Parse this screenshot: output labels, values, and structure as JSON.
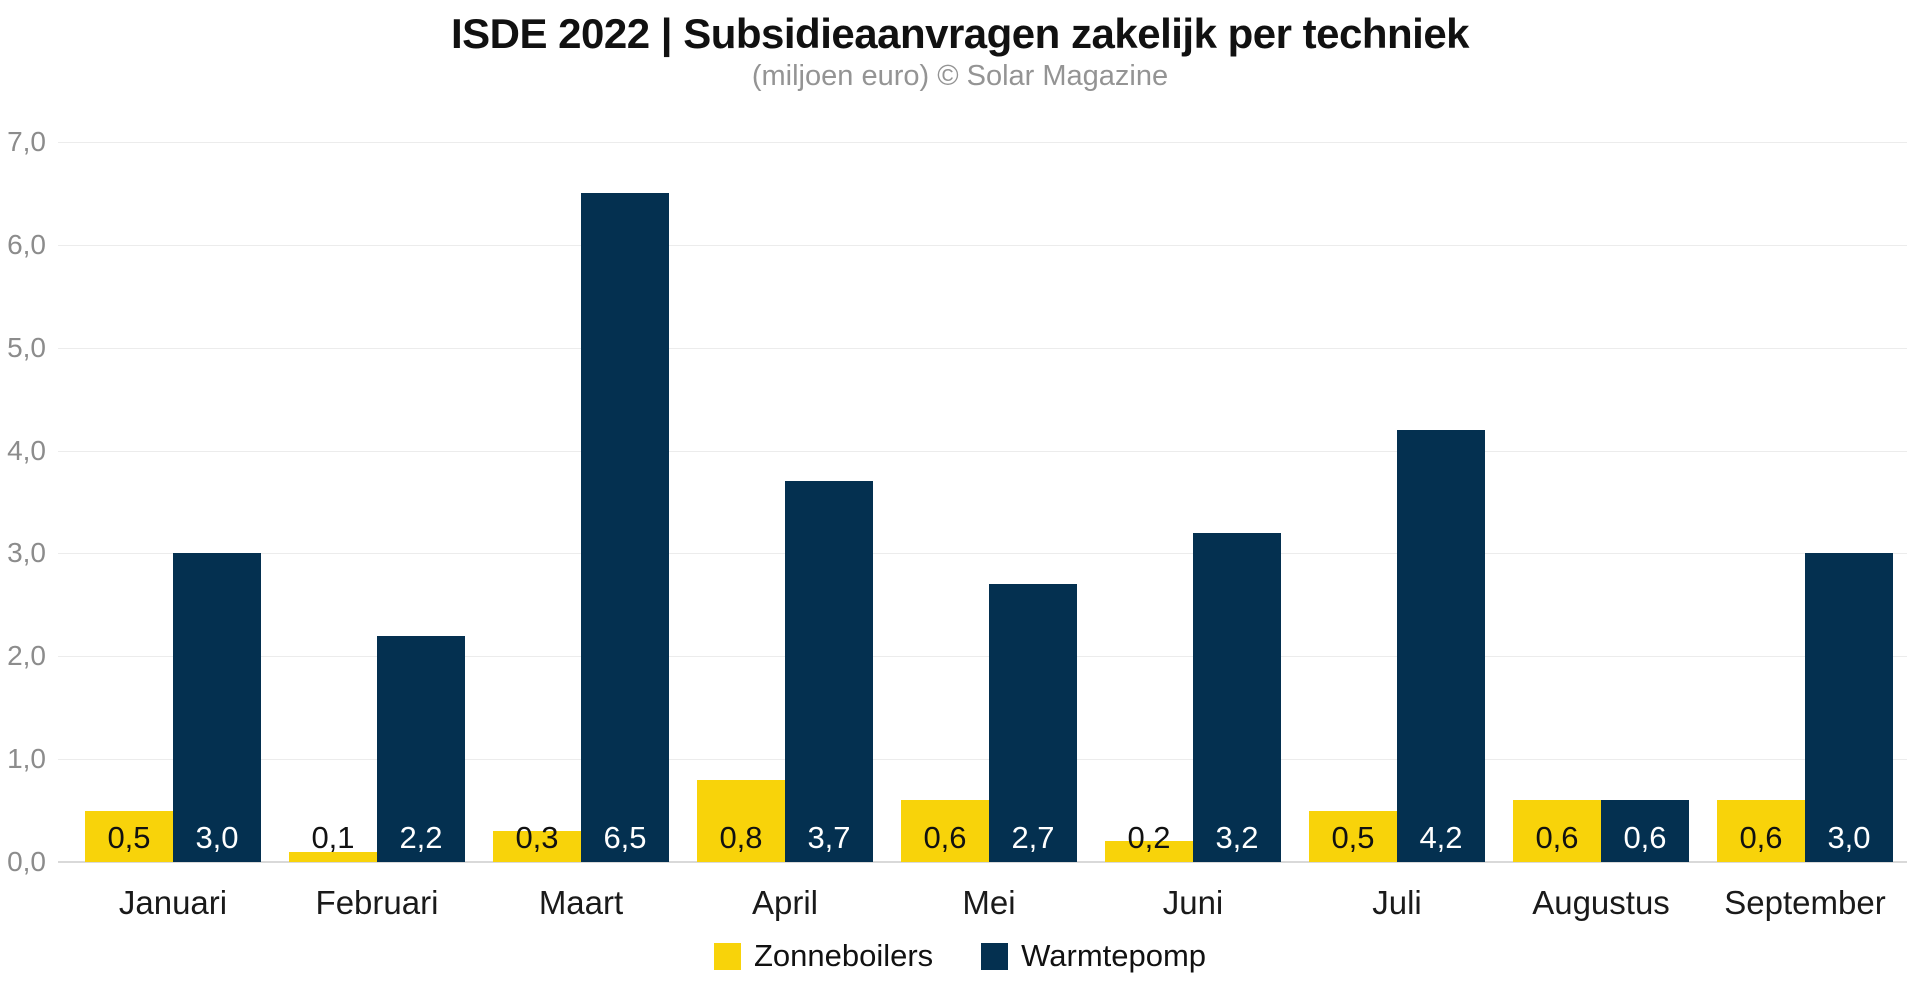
{
  "chart_data": {
    "type": "bar",
    "title": "ISDE 2022 | Subsidieaanvragen zakelijk per techniek",
    "subtitle": "(miljoen euro) © Solar Magazine",
    "categories": [
      "Januari",
      "Februari",
      "Maart",
      "April",
      "Mei",
      "Juni",
      "Juli",
      "Augustus",
      "September"
    ],
    "series": [
      {
        "name": "Zonneboilers",
        "color": "#f8d30a",
        "label_color": "#111111",
        "values": [
          0.5,
          0.1,
          0.3,
          0.8,
          0.6,
          0.2,
          0.5,
          0.6,
          0.6
        ],
        "labels": [
          "0,5",
          "0,1",
          "0,3",
          "0,8",
          "0,6",
          "0,2",
          "0,5",
          "0,6",
          "0,6"
        ]
      },
      {
        "name": "Warmtepomp",
        "color": "#043050",
        "label_color": "#ffffff",
        "values": [
          3.0,
          2.2,
          6.5,
          3.7,
          2.7,
          3.2,
          4.2,
          0.6,
          3.0
        ],
        "labels": [
          "3,0",
          "2,2",
          "6,5",
          "3,7",
          "2,7",
          "3,2",
          "4,2",
          "0,6",
          "3,0"
        ]
      }
    ],
    "xlabel": "",
    "ylabel": "",
    "ylim": [
      0,
      7
    ],
    "yticks": [
      {
        "value": 7,
        "label": "7,0"
      },
      {
        "value": 6,
        "label": "6,0"
      },
      {
        "value": 5,
        "label": "5,0"
      },
      {
        "value": 4,
        "label": "4,0"
      },
      {
        "value": 3,
        "label": "3,0"
      },
      {
        "value": 2,
        "label": "2,0"
      },
      {
        "value": 1,
        "label": "1,0"
      },
      {
        "value": 0,
        "label": "0,0"
      }
    ],
    "grid": true,
    "legend_position": "bottom"
  },
  "colors": {
    "background": "#ffffff",
    "title": "#111111",
    "subtitle": "#949494",
    "axis_tick_label": "#8c8c8c",
    "month_label": "#1a1a1a",
    "gridline": "#ececec",
    "baseline": "#d9d9d9",
    "zonneboilers": "#f8d30a",
    "warmtepomp": "#043050"
  }
}
